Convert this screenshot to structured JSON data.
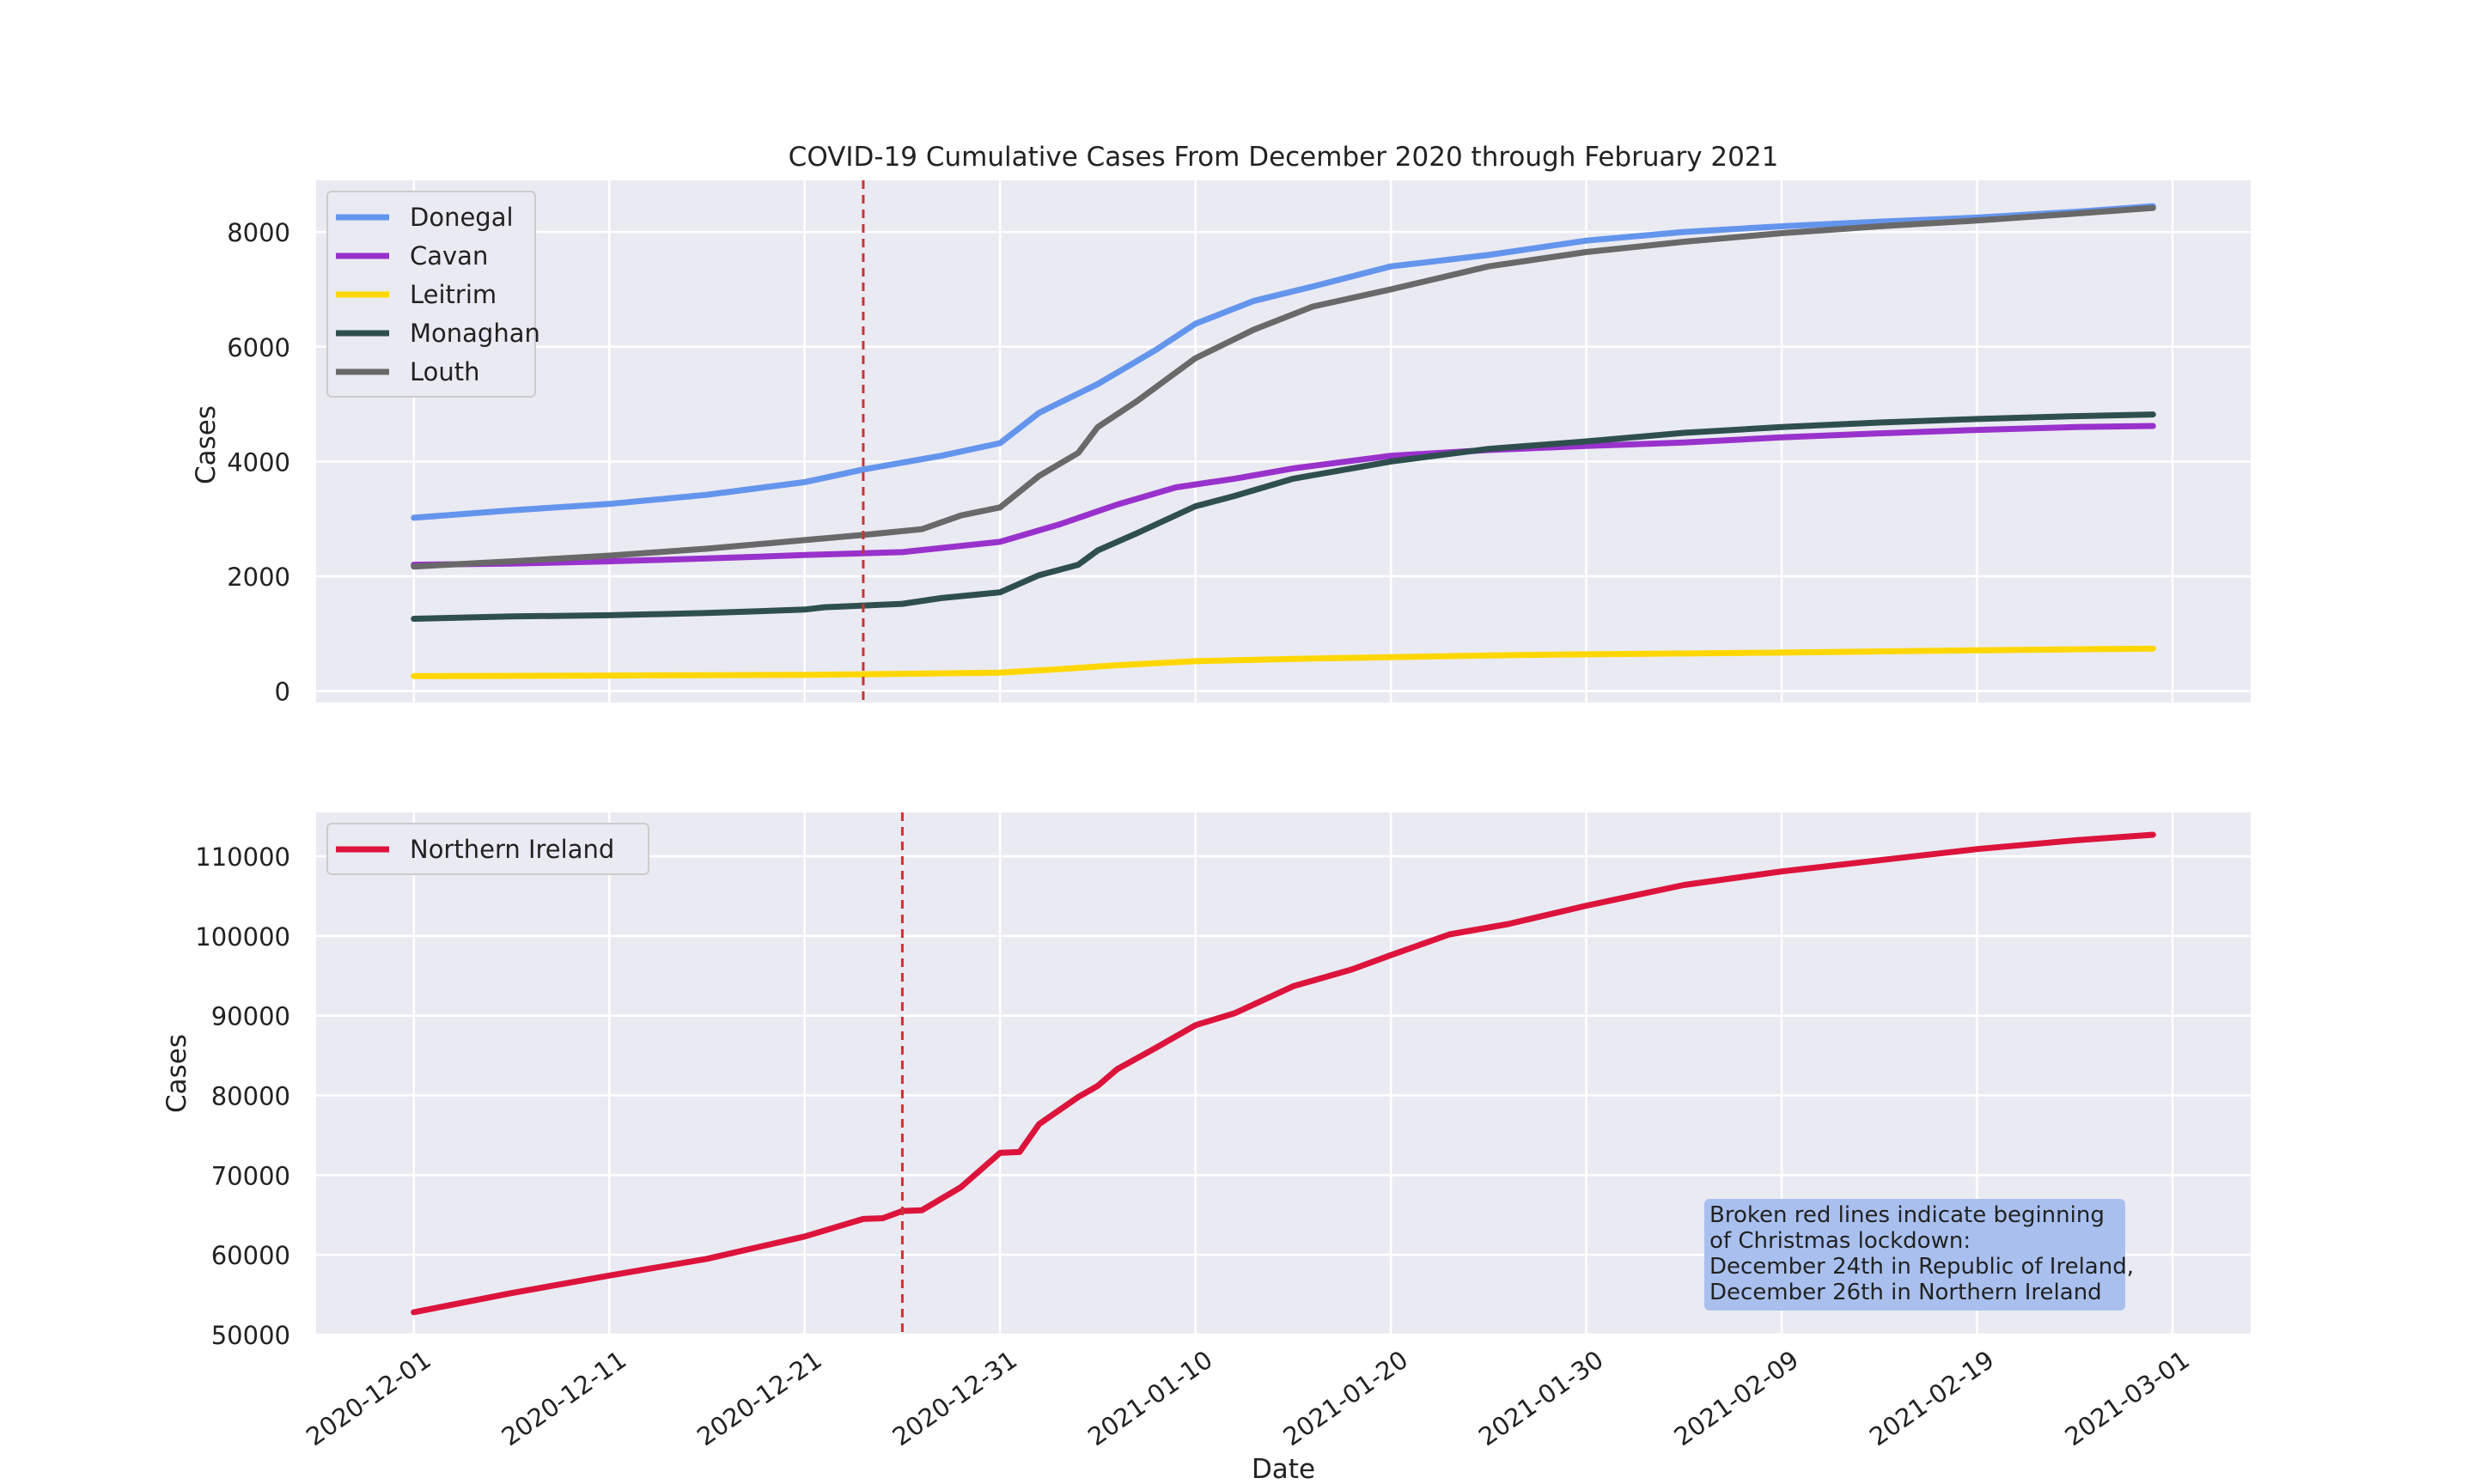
{
  "chart_data": [
    {
      "type": "line",
      "title": "COVID-19 Cumulative Cases From December 2020 through February 2021",
      "xlabel": "",
      "ylabel": "Cases",
      "ylim": [
        -200,
        8900
      ],
      "yticks": [
        0,
        2000,
        4000,
        6000,
        8000
      ],
      "grid": true,
      "legend_position": "top-left",
      "marker": {
        "date": "2020-12-24",
        "style": "dashed",
        "color": "#cc3333"
      },
      "series": [
        {
          "name": "Donegal",
          "color": "#6495ed",
          "points": [
            [
              "2020-12-01",
              3020
            ],
            [
              "2020-12-06",
              3150
            ],
            [
              "2020-12-11",
              3260
            ],
            [
              "2020-12-16",
              3420
            ],
            [
              "2020-12-21",
              3640
            ],
            [
              "2020-12-24",
              3860
            ],
            [
              "2020-12-26",
              3980
            ],
            [
              "2020-12-28",
              4100
            ],
            [
              "2020-12-31",
              4320
            ],
            [
              "2021-01-02",
              4850
            ],
            [
              "2021-01-05",
              5350
            ],
            [
              "2021-01-08",
              5950
            ],
            [
              "2021-01-10",
              6400
            ],
            [
              "2021-01-13",
              6800
            ],
            [
              "2021-01-16",
              7050
            ],
            [
              "2021-01-20",
              7400
            ],
            [
              "2021-01-25",
              7600
            ],
            [
              "2021-01-30",
              7850
            ],
            [
              "2021-02-04",
              8000
            ],
            [
              "2021-02-09",
              8100
            ],
            [
              "2021-02-14",
              8180
            ],
            [
              "2021-02-19",
              8250
            ],
            [
              "2021-02-24",
              8350
            ],
            [
              "2021-02-28",
              8450
            ]
          ]
        },
        {
          "name": "Cavan",
          "color": "#9932cc",
          "points": [
            [
              "2020-12-01",
              2200
            ],
            [
              "2020-12-06",
              2220
            ],
            [
              "2020-12-11",
              2260
            ],
            [
              "2020-12-16",
              2310
            ],
            [
              "2020-12-21",
              2370
            ],
            [
              "2020-12-26",
              2420
            ],
            [
              "2020-12-31",
              2600
            ],
            [
              "2021-01-03",
              2900
            ],
            [
              "2021-01-06",
              3250
            ],
            [
              "2021-01-09",
              3550
            ],
            [
              "2021-01-12",
              3700
            ],
            [
              "2021-01-15",
              3880
            ],
            [
              "2021-01-20",
              4100
            ],
            [
              "2021-01-25",
              4200
            ],
            [
              "2021-01-30",
              4270
            ],
            [
              "2021-02-04",
              4330
            ],
            [
              "2021-02-09",
              4420
            ],
            [
              "2021-02-14",
              4490
            ],
            [
              "2021-02-19",
              4550
            ],
            [
              "2021-02-24",
              4600
            ],
            [
              "2021-02-28",
              4620
            ]
          ]
        },
        {
          "name": "Leitrim",
          "color": "#ffd700",
          "points": [
            [
              "2020-12-01",
              260
            ],
            [
              "2020-12-11",
              270
            ],
            [
              "2020-12-21",
              280
            ],
            [
              "2020-12-26",
              300
            ],
            [
              "2020-12-31",
              320
            ],
            [
              "2021-01-03",
              380
            ],
            [
              "2021-01-06",
              450
            ],
            [
              "2021-01-10",
              520
            ],
            [
              "2021-01-15",
              560
            ],
            [
              "2021-01-20",
              590
            ],
            [
              "2021-01-25",
              620
            ],
            [
              "2021-01-30",
              640
            ],
            [
              "2021-02-09",
              670
            ],
            [
              "2021-02-19",
              710
            ],
            [
              "2021-02-28",
              740
            ]
          ]
        },
        {
          "name": "Monaghan",
          "color": "#2f4f4f",
          "points": [
            [
              "2020-12-01",
              1260
            ],
            [
              "2020-12-06",
              1300
            ],
            [
              "2020-12-11",
              1320
            ],
            [
              "2020-12-16",
              1360
            ],
            [
              "2020-12-21",
              1420
            ],
            [
              "2020-12-22",
              1460
            ],
            [
              "2020-12-26",
              1520
            ],
            [
              "2020-12-28",
              1620
            ],
            [
              "2020-12-31",
              1720
            ],
            [
              "2021-01-02",
              2020
            ],
            [
              "2021-01-04",
              2200
            ],
            [
              "2021-01-05",
              2450
            ],
            [
              "2021-01-07",
              2750
            ],
            [
              "2021-01-10",
              3220
            ],
            [
              "2021-01-12",
              3400
            ],
            [
              "2021-01-15",
              3700
            ],
            [
              "2021-01-18",
              3880
            ],
            [
              "2021-01-20",
              4000
            ],
            [
              "2021-01-25",
              4220
            ],
            [
              "2021-01-30",
              4350
            ],
            [
              "2021-02-04",
              4500
            ],
            [
              "2021-02-09",
              4600
            ],
            [
              "2021-02-14",
              4680
            ],
            [
              "2021-02-19",
              4740
            ],
            [
              "2021-02-24",
              4790
            ],
            [
              "2021-02-28",
              4820
            ]
          ]
        },
        {
          "name": "Louth",
          "color": "#696969",
          "points": [
            [
              "2020-12-01",
              2170
            ],
            [
              "2020-12-06",
              2260
            ],
            [
              "2020-12-11",
              2360
            ],
            [
              "2020-12-16",
              2480
            ],
            [
              "2020-12-21",
              2630
            ],
            [
              "2020-12-24",
              2720
            ],
            [
              "2020-12-27",
              2820
            ],
            [
              "2020-12-29",
              3060
            ],
            [
              "2020-12-31",
              3200
            ],
            [
              "2021-01-02",
              3750
            ],
            [
              "2021-01-04",
              4150
            ],
            [
              "2021-01-05",
              4600
            ],
            [
              "2021-01-07",
              5050
            ],
            [
              "2021-01-10",
              5800
            ],
            [
              "2021-01-13",
              6300
            ],
            [
              "2021-01-16",
              6700
            ],
            [
              "2021-01-20",
              7000
            ],
            [
              "2021-01-25",
              7400
            ],
            [
              "2021-01-30",
              7650
            ],
            [
              "2021-02-04",
              7830
            ],
            [
              "2021-02-09",
              7980
            ],
            [
              "2021-02-14",
              8100
            ],
            [
              "2021-02-19",
              8200
            ],
            [
              "2021-02-24",
              8320
            ],
            [
              "2021-02-28",
              8420
            ]
          ]
        }
      ]
    },
    {
      "type": "line",
      "title": "",
      "xlabel": "Date",
      "ylabel": "Cases",
      "ylim": [
        50000,
        115500
      ],
      "yticks": [
        50000,
        60000,
        70000,
        80000,
        90000,
        100000,
        110000
      ],
      "xticks": [
        "2020-12-01",
        "2020-12-11",
        "2020-12-21",
        "2020-12-31",
        "2021-01-10",
        "2021-01-20",
        "2021-01-30",
        "2021-02-09",
        "2021-02-19",
        "2021-03-01"
      ],
      "xlim": [
        "2020-11-26",
        "2021-03-05"
      ],
      "grid": true,
      "legend_position": "top-left",
      "marker": {
        "date": "2020-12-26",
        "style": "dashed",
        "color": "#cc3333"
      },
      "annotation": [
        "Broken red lines indicate beginning",
        "of Christmas lockdown:",
        "December 24th in Republic of Ireland,",
        "December 26th in Northern Ireland"
      ],
      "series": [
        {
          "name": "Northern Ireland",
          "color": "#dc143c",
          "points": [
            [
              "2020-12-01",
              52800
            ],
            [
              "2020-12-06",
              55200
            ],
            [
              "2020-12-11",
              57400
            ],
            [
              "2020-12-16",
              59500
            ],
            [
              "2020-12-21",
              62300
            ],
            [
              "2020-12-24",
              64500
            ],
            [
              "2020-12-25",
              64600
            ],
            [
              "2020-12-26",
              65500
            ],
            [
              "2020-12-27",
              65600
            ],
            [
              "2020-12-29",
              68500
            ],
            [
              "2020-12-31",
              72800
            ],
            [
              "2021-01-01",
              72900
            ],
            [
              "2021-01-02",
              76400
            ],
            [
              "2021-01-04",
              79800
            ],
            [
              "2021-01-05",
              81200
            ],
            [
              "2021-01-06",
              83300
            ],
            [
              "2021-01-08",
              86000
            ],
            [
              "2021-01-10",
              88800
            ],
            [
              "2021-01-12",
              90300
            ],
            [
              "2021-01-15",
              93700
            ],
            [
              "2021-01-18",
              95800
            ],
            [
              "2021-01-20",
              97600
            ],
            [
              "2021-01-23",
              100200
            ],
            [
              "2021-01-26",
              101500
            ],
            [
              "2021-01-30",
              103800
            ],
            [
              "2021-02-04",
              106400
            ],
            [
              "2021-02-09",
              108100
            ],
            [
              "2021-02-14",
              109500
            ],
            [
              "2021-02-19",
              110900
            ],
            [
              "2021-02-24",
              112000
            ],
            [
              "2021-02-28",
              112700
            ]
          ]
        }
      ]
    }
  ]
}
